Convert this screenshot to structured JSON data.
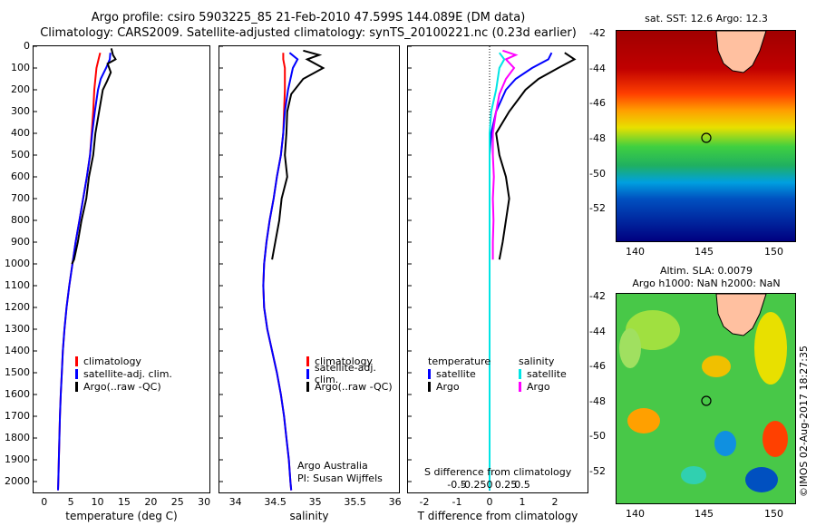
{
  "header": {
    "line1": "Argo profile: csiro 5903225_85 21-Feb-2010 47.599S 144.089E (DM data)",
    "line2": "Climatology: CARS2009. Satellite-adjusted climatology: synTS_20100221.nc (0.23d earlier)"
  },
  "colors": {
    "climatology": "#ff0000",
    "satellite": "#0000ff",
    "argo": "#000000",
    "cyan": "#00e5e5",
    "magenta": "#ff00ff"
  },
  "depth_ticks": [
    "0",
    "100",
    "200",
    "300",
    "400",
    "500",
    "600",
    "700",
    "800",
    "900",
    "1000",
    "1100",
    "1200",
    "1300",
    "1400",
    "1500",
    "1600",
    "1700",
    "1800",
    "1900",
    "2000"
  ],
  "panel_temp": {
    "xlabel": "temperature (deg C)",
    "xticks": [
      "0",
      "5",
      "10",
      "15",
      "20",
      "25",
      "30"
    ],
    "legend": [
      "climatology",
      "satellite-adj. clim.",
      "Argo(..raw -QC)"
    ]
  },
  "panel_sal": {
    "xlabel": "salinity",
    "xticks": [
      "34",
      "34.5",
      "35",
      "35.5",
      "36"
    ],
    "legend": [
      "climatology",
      "satellite-adj. clim.",
      "Argo(..raw -QC)"
    ],
    "note1": "Argo Australia",
    "note2": "PI: Susan Wijffels"
  },
  "panel_diff": {
    "legend_left_title": "temperature",
    "legend_right_title": "salinity",
    "legend_left": [
      "satellite",
      "Argo"
    ],
    "legend_right": [
      "satellite",
      "Argo"
    ],
    "s_label": "S difference from climatology",
    "s_ticks": [
      "-0.5",
      "-0.25",
      "0",
      "0.25",
      "0.5"
    ],
    "t_ticks": [
      "-2",
      "-1",
      "0",
      "1",
      "2"
    ],
    "xlabel": "T difference from climatology"
  },
  "map_top": {
    "title": "sat. SST: 12.6 Argo: 12.3",
    "yticks": [
      "-42",
      "-44",
      "-46",
      "-48",
      "-50",
      "-52"
    ],
    "xticks": [
      "140",
      "145",
      "150"
    ]
  },
  "map_bottom": {
    "title1": "Altim. SLA: 0.0079",
    "title2": "Argo h1000: NaN h2000: NaN",
    "yticks": [
      "-42",
      "-44",
      "-46",
      "-48",
      "-50",
      "-52"
    ],
    "xticks": [
      "140",
      "145",
      "150"
    ]
  },
  "credit": "©IMOS 02-Aug-2017 18:27:35",
  "chart_data": [
    {
      "type": "line",
      "xlabel": "temperature (deg C)",
      "ylabel": "",
      "ylim": [
        2050,
        0
      ],
      "xlim": [
        -2,
        31
      ],
      "series": [
        {
          "name": "climatology",
          "points": [
            [
              10.5,
              30
            ],
            [
              10.2,
              60
            ],
            [
              9.8,
              100
            ],
            [
              9.6,
              150
            ],
            [
              9.4,
              200
            ],
            [
              9.2,
              300
            ],
            [
              8.9,
              400
            ],
            [
              8.6,
              500
            ],
            [
              8.0,
              600
            ],
            [
              7.3,
              700
            ],
            [
              6.6,
              800
            ],
            [
              5.9,
              900
            ],
            [
              5.3,
              1000
            ],
            [
              4.7,
              1100
            ],
            [
              4.2,
              1200
            ],
            [
              3.8,
              1300
            ],
            [
              3.5,
              1400
            ],
            [
              3.3,
              1500
            ],
            [
              3.1,
              1600
            ],
            [
              2.95,
              1700
            ],
            [
              2.85,
              1800
            ],
            [
              2.75,
              1900
            ],
            [
              2.65,
              2000
            ],
            [
              2.6,
              2040
            ]
          ]
        },
        {
          "name": "satellite-adj. clim.",
          "points": [
            [
              12.4,
              30
            ],
            [
              12.3,
              60
            ],
            [
              11.6,
              100
            ],
            [
              10.6,
              150
            ],
            [
              10.1,
              200
            ],
            [
              9.5,
              300
            ],
            [
              9.0,
              400
            ],
            [
              8.6,
              500
            ],
            [
              8.0,
              600
            ],
            [
              7.3,
              700
            ],
            [
              6.6,
              800
            ],
            [
              5.9,
              900
            ],
            [
              5.3,
              1000
            ],
            [
              4.7,
              1100
            ],
            [
              4.2,
              1200
            ],
            [
              3.8,
              1300
            ],
            [
              3.5,
              1400
            ],
            [
              3.3,
              1500
            ],
            [
              3.1,
              1600
            ],
            [
              2.95,
              1700
            ],
            [
              2.85,
              1800
            ],
            [
              2.75,
              1900
            ],
            [
              2.65,
              2000
            ],
            [
              2.6,
              2040
            ]
          ]
        },
        {
          "name": "Argo(..raw -QC)",
          "points": [
            [
              12.6,
              10
            ],
            [
              12.9,
              40
            ],
            [
              13.4,
              60
            ],
            [
              11.9,
              80
            ],
            [
              12.5,
              120
            ],
            [
              11.8,
              160
            ],
            [
              11.0,
              200
            ],
            [
              10.3,
              300
            ],
            [
              9.6,
              400
            ],
            [
              9.2,
              500
            ],
            [
              8.4,
              600
            ],
            [
              7.9,
              700
            ],
            [
              7.0,
              800
            ],
            [
              6.3,
              900
            ],
            [
              5.6,
              980
            ],
            [
              5.2,
              1000
            ]
          ]
        }
      ]
    },
    {
      "type": "line",
      "xlabel": "salinity",
      "ylim": [
        2050,
        0
      ],
      "xlim": [
        33.8,
        36.05
      ],
      "series": [
        {
          "name": "climatology",
          "points": [
            [
              34.6,
              30
            ],
            [
              34.6,
              60
            ],
            [
              34.62,
              100
            ],
            [
              34.62,
              200
            ],
            [
              34.61,
              300
            ],
            [
              34.6,
              400
            ],
            [
              34.57,
              500
            ],
            [
              34.52,
              600
            ],
            [
              34.48,
              700
            ],
            [
              34.43,
              800
            ],
            [
              34.39,
              900
            ],
            [
              34.36,
              1000
            ],
            [
              34.35,
              1100
            ],
            [
              34.36,
              1200
            ],
            [
              34.4,
              1300
            ],
            [
              34.46,
              1400
            ],
            [
              34.52,
              1500
            ],
            [
              34.57,
              1600
            ],
            [
              34.61,
              1700
            ],
            [
              34.64,
              1800
            ],
            [
              34.67,
              1900
            ],
            [
              34.69,
              2000
            ],
            [
              34.7,
              2040
            ]
          ]
        },
        {
          "name": "satellite-adj. clim.",
          "points": [
            [
              34.68,
              30
            ],
            [
              34.78,
              60
            ],
            [
              34.72,
              100
            ],
            [
              34.66,
              200
            ],
            [
              34.62,
              300
            ],
            [
              34.6,
              400
            ],
            [
              34.57,
              500
            ],
            [
              34.52,
              600
            ],
            [
              34.48,
              700
            ],
            [
              34.43,
              800
            ],
            [
              34.39,
              900
            ],
            [
              34.36,
              1000
            ],
            [
              34.35,
              1100
            ],
            [
              34.36,
              1200
            ],
            [
              34.4,
              1300
            ],
            [
              34.46,
              1400
            ],
            [
              34.52,
              1500
            ],
            [
              34.57,
              1600
            ],
            [
              34.61,
              1700
            ],
            [
              34.64,
              1800
            ],
            [
              34.67,
              1900
            ],
            [
              34.69,
              2000
            ],
            [
              34.7,
              2040
            ]
          ]
        },
        {
          "name": "Argo(..raw -QC)",
          "points": [
            [
              34.85,
              20
            ],
            [
              35.05,
              40
            ],
            [
              34.9,
              60
            ],
            [
              35.1,
              100
            ],
            [
              34.85,
              150
            ],
            [
              34.7,
              220
            ],
            [
              34.65,
              300
            ],
            [
              34.64,
              400
            ],
            [
              34.62,
              500
            ],
            [
              34.65,
              600
            ],
            [
              34.58,
              700
            ],
            [
              34.55,
              800
            ],
            [
              34.5,
              900
            ],
            [
              34.46,
              980
            ]
          ]
        }
      ]
    },
    {
      "type": "line",
      "xlabel": "T difference from climatology",
      "ylim": [
        2050,
        0
      ],
      "xlim": [
        -2.5,
        3
      ],
      "series": [
        {
          "name": "temperature satellite",
          "points": [
            [
              1.9,
              30
            ],
            [
              1.8,
              60
            ],
            [
              1.3,
              100
            ],
            [
              0.8,
              150
            ],
            [
              0.5,
              200
            ],
            [
              0.2,
              300
            ],
            [
              0.05,
              400
            ],
            [
              0,
              500
            ],
            [
              0,
              700
            ],
            [
              0,
              1000
            ],
            [
              0,
              1300
            ],
            [
              0,
              2040
            ]
          ]
        },
        {
          "name": "temperature Argo",
          "points": [
            [
              2.3,
              30
            ],
            [
              2.6,
              60
            ],
            [
              2.1,
              100
            ],
            [
              1.5,
              150
            ],
            [
              1.1,
              200
            ],
            [
              0.6,
              300
            ],
            [
              0.2,
              400
            ],
            [
              0.3,
              500
            ],
            [
              0.5,
              600
            ],
            [
              0.6,
              700
            ],
            [
              0.5,
              800
            ],
            [
              0.4,
              900
            ],
            [
              0.3,
              980
            ]
          ]
        },
        {
          "name": "salinity satellite",
          "points": [
            [
              0.3,
              30
            ],
            [
              0.45,
              60
            ],
            [
              0.3,
              100
            ],
            [
              0.2,
              200
            ],
            [
              0.05,
              300
            ],
            [
              0,
              400
            ],
            [
              0,
              2040
            ]
          ]
        },
        {
          "name": "salinity Argo",
          "points": [
            [
              0.4,
              20
            ],
            [
              0.8,
              40
            ],
            [
              0.5,
              60
            ],
            [
              0.75,
              100
            ],
            [
              0.5,
              150
            ],
            [
              0.3,
              220
            ],
            [
              0.2,
              300
            ],
            [
              0.1,
              400
            ],
            [
              0.1,
              500
            ],
            [
              0.13,
              600
            ],
            [
              0.1,
              700
            ],
            [
              0.12,
              800
            ],
            [
              0.1,
              900
            ],
            [
              0.1,
              980
            ]
          ]
        }
      ]
    }
  ]
}
